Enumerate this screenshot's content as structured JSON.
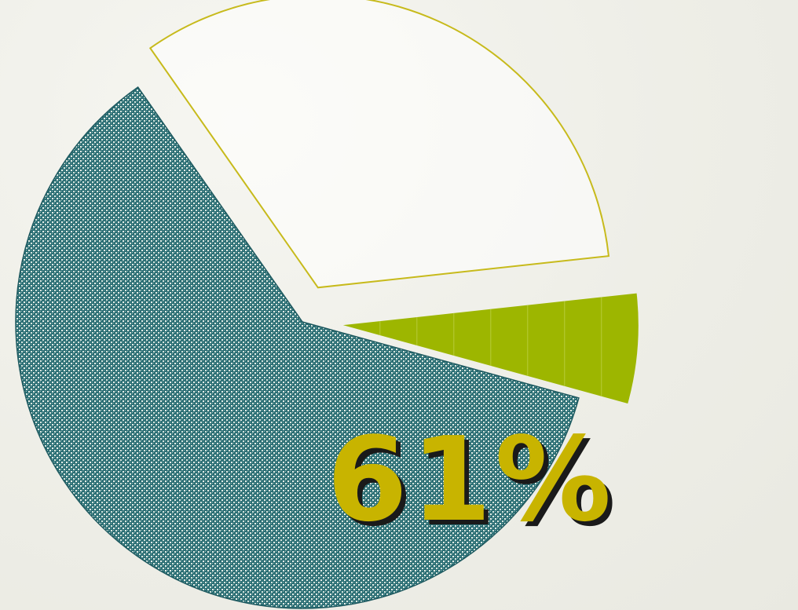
{
  "chart_data": {
    "type": "pie",
    "slices": [
      {
        "value": 61,
        "color": "#2b6e74",
        "style": "textured",
        "exploded": false
      },
      {
        "value": 33,
        "color": "#ffffff",
        "style": "outline",
        "outline_color": "#c7ba1b",
        "exploded": true
      },
      {
        "value": 6,
        "color": "#9db600",
        "style": "solid",
        "exploded": true
      }
    ],
    "data_labels": [
      "61%"
    ],
    "title": "",
    "legend": "none"
  },
  "colors": {
    "label_fill": "#c8b400",
    "label_shadow": "#1a1a1a",
    "background": "#f2f2ec"
  }
}
